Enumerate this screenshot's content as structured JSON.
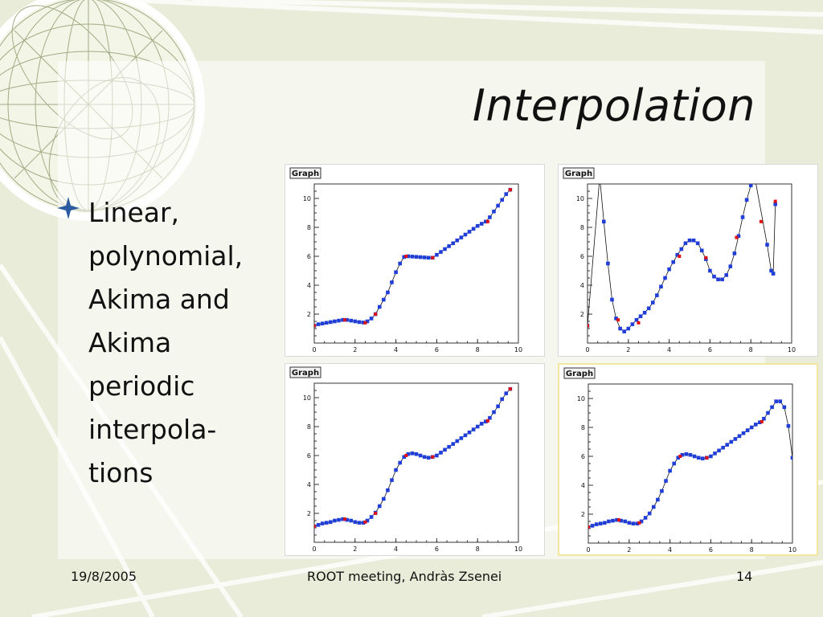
{
  "slide": {
    "title": "Interpolation",
    "bullet": [
      "Linear,",
      "polynomial,",
      "Akima and",
      "Akima",
      "periodic",
      "interpola-",
      "tions"
    ]
  },
  "footer": {
    "date": "19/8/2005",
    "center": "ROOT meeting, Andràs Zsenei",
    "page": "14"
  },
  "colors": {
    "marker": "#1f3ed8",
    "anchor": "#e01010",
    "curve": "#111111",
    "bullet_star": "#2c5aa0"
  },
  "chart_data": [
    {
      "type": "scatter",
      "frame_label": "Graph",
      "interpolation": "linear",
      "xlim": [
        0,
        10
      ],
      "ylim": [
        0,
        11
      ],
      "xticks": [
        "0",
        "2",
        "4",
        "6",
        "8",
        "10"
      ],
      "yticks": [
        "2",
        "4",
        "6",
        "8",
        "10"
      ],
      "anchors": [
        [
          0,
          1.2
        ],
        [
          1.5,
          1.6
        ],
        [
          2.5,
          1.4
        ],
        [
          3,
          2.0
        ],
        [
          4.5,
          6.0
        ],
        [
          5.8,
          5.9
        ],
        [
          8.5,
          8.4
        ],
        [
          9.6,
          10.6
        ]
      ],
      "series": [
        {
          "values": [
            [
              0,
              1.2
            ],
            [
              0.2,
              1.3
            ],
            [
              0.4,
              1.35
            ],
            [
              0.6,
              1.4
            ],
            [
              0.8,
              1.45
            ],
            [
              1.0,
              1.5
            ],
            [
              1.2,
              1.55
            ],
            [
              1.4,
              1.6
            ],
            [
              1.6,
              1.6
            ],
            [
              1.8,
              1.55
            ],
            [
              2.0,
              1.5
            ],
            [
              2.2,
              1.45
            ],
            [
              2.4,
              1.42
            ],
            [
              2.6,
              1.5
            ],
            [
              2.8,
              1.7
            ],
            [
              3.0,
              2.0
            ],
            [
              3.2,
              2.5
            ],
            [
              3.4,
              3.0
            ],
            [
              3.6,
              3.5
            ],
            [
              3.8,
              4.2
            ],
            [
              4.0,
              4.9
            ],
            [
              4.2,
              5.5
            ],
            [
              4.4,
              5.95
            ],
            [
              4.6,
              6.0
            ],
            [
              4.8,
              5.98
            ],
            [
              5.0,
              5.96
            ],
            [
              5.2,
              5.94
            ],
            [
              5.4,
              5.92
            ],
            [
              5.6,
              5.9
            ],
            [
              5.8,
              5.9
            ],
            [
              6.0,
              6.1
            ],
            [
              6.2,
              6.3
            ],
            [
              6.4,
              6.5
            ],
            [
              6.6,
              6.7
            ],
            [
              6.8,
              6.9
            ],
            [
              7.0,
              7.1
            ],
            [
              7.2,
              7.3
            ],
            [
              7.4,
              7.5
            ],
            [
              7.6,
              7.7
            ],
            [
              7.8,
              7.9
            ],
            [
              8.0,
              8.1
            ],
            [
              8.2,
              8.25
            ],
            [
              8.4,
              8.4
            ],
            [
              8.6,
              8.7
            ],
            [
              8.8,
              9.1
            ],
            [
              9.0,
              9.5
            ],
            [
              9.2,
              9.9
            ],
            [
              9.4,
              10.3
            ],
            [
              9.6,
              10.6
            ]
          ]
        }
      ]
    },
    {
      "type": "scatter",
      "frame_label": "Graph",
      "interpolation": "polynomial",
      "xlim": [
        0,
        10
      ],
      "ylim": [
        0,
        11
      ],
      "xticks": [
        "0",
        "2",
        "4",
        "6",
        "8",
        "10"
      ],
      "yticks": [
        "2",
        "4",
        "6",
        "8",
        "10"
      ],
      "anchors": [
        [
          0,
          1.2
        ],
        [
          1.5,
          1.6
        ],
        [
          2.5,
          1.4
        ],
        [
          4.5,
          6.0
        ],
        [
          5.8,
          5.9
        ],
        [
          7.3,
          7.3
        ],
        [
          8.5,
          8.4
        ],
        [
          9.2,
          9.8
        ]
      ],
      "series": [
        {
          "values": [
            [
              0,
              1.2
            ],
            [
              0.6,
              11.5
            ],
            [
              0.8,
              8.4
            ],
            [
              1.0,
              5.5
            ],
            [
              1.2,
              3.0
            ],
            [
              1.4,
              1.7
            ],
            [
              1.6,
              1.0
            ],
            [
              1.8,
              0.8
            ],
            [
              2.0,
              1.0
            ],
            [
              2.2,
              1.3
            ],
            [
              2.4,
              1.6
            ],
            [
              2.6,
              1.85
            ],
            [
              2.8,
              2.1
            ],
            [
              3.0,
              2.4
            ],
            [
              3.2,
              2.8
            ],
            [
              3.4,
              3.3
            ],
            [
              3.6,
              3.9
            ],
            [
              3.8,
              4.5
            ],
            [
              4.0,
              5.1
            ],
            [
              4.2,
              5.6
            ],
            [
              4.4,
              6.1
            ],
            [
              4.6,
              6.5
            ],
            [
              4.8,
              6.9
            ],
            [
              5.0,
              7.1
            ],
            [
              5.2,
              7.1
            ],
            [
              5.4,
              6.9
            ],
            [
              5.6,
              6.4
            ],
            [
              5.8,
              5.8
            ],
            [
              6.0,
              5.0
            ],
            [
              6.2,
              4.6
            ],
            [
              6.4,
              4.4
            ],
            [
              6.6,
              4.4
            ],
            [
              6.8,
              4.7
            ],
            [
              7.0,
              5.3
            ],
            [
              7.2,
              6.2
            ],
            [
              7.4,
              7.4
            ],
            [
              7.6,
              8.7
            ],
            [
              7.8,
              9.9
            ],
            [
              8.0,
              10.9
            ],
            [
              8.2,
              11.4
            ],
            [
              8.8,
              6.8
            ],
            [
              9.0,
              5.0
            ],
            [
              9.1,
              4.8
            ],
            [
              9.2,
              9.6
            ]
          ]
        }
      ]
    },
    {
      "type": "scatter",
      "frame_label": "Graph",
      "interpolation": "akima",
      "xlim": [
        0,
        10
      ],
      "ylim": [
        0,
        11
      ],
      "xticks": [
        "0",
        "2",
        "4",
        "6",
        "8",
        "10"
      ],
      "yticks": [
        "2",
        "4",
        "6",
        "8",
        "10"
      ],
      "anchors": [
        [
          0,
          1.1
        ],
        [
          1.5,
          1.6
        ],
        [
          2.5,
          1.4
        ],
        [
          3,
          2.0
        ],
        [
          4.5,
          6.0
        ],
        [
          5.8,
          5.9
        ],
        [
          8.5,
          8.4
        ],
        [
          9.6,
          10.6
        ]
      ],
      "series": [
        {
          "values": [
            [
              0,
              1.1
            ],
            [
              0.2,
              1.2
            ],
            [
              0.4,
              1.3
            ],
            [
              0.6,
              1.35
            ],
            [
              0.8,
              1.4
            ],
            [
              1.0,
              1.5
            ],
            [
              1.2,
              1.55
            ],
            [
              1.4,
              1.6
            ],
            [
              1.6,
              1.55
            ],
            [
              1.8,
              1.5
            ],
            [
              2.0,
              1.4
            ],
            [
              2.2,
              1.35
            ],
            [
              2.4,
              1.35
            ],
            [
              2.6,
              1.5
            ],
            [
              2.8,
              1.75
            ],
            [
              3.0,
              2.05
            ],
            [
              3.2,
              2.5
            ],
            [
              3.4,
              3.0
            ],
            [
              3.6,
              3.6
            ],
            [
              3.8,
              4.3
            ],
            [
              4.0,
              5.0
            ],
            [
              4.2,
              5.5
            ],
            [
              4.4,
              5.9
            ],
            [
              4.6,
              6.1
            ],
            [
              4.8,
              6.15
            ],
            [
              5.0,
              6.1
            ],
            [
              5.2,
              6.0
            ],
            [
              5.4,
              5.9
            ],
            [
              5.6,
              5.85
            ],
            [
              5.8,
              5.9
            ],
            [
              6.0,
              6.0
            ],
            [
              6.2,
              6.2
            ],
            [
              6.4,
              6.4
            ],
            [
              6.6,
              6.6
            ],
            [
              6.8,
              6.8
            ],
            [
              7.0,
              7.0
            ],
            [
              7.2,
              7.2
            ],
            [
              7.4,
              7.4
            ],
            [
              7.6,
              7.6
            ],
            [
              7.8,
              7.8
            ],
            [
              8.0,
              8.0
            ],
            [
              8.2,
              8.2
            ],
            [
              8.4,
              8.35
            ],
            [
              8.6,
              8.6
            ],
            [
              8.8,
              9.0
            ],
            [
              9.0,
              9.4
            ],
            [
              9.2,
              9.9
            ],
            [
              9.4,
              10.3
            ],
            [
              9.6,
              10.6
            ]
          ]
        }
      ]
    },
    {
      "type": "scatter",
      "frame_label": "Graph",
      "interpolation": "akima periodic",
      "xlim": [
        0,
        10
      ],
      "ylim": [
        0,
        11
      ],
      "xticks": [
        "0",
        "2",
        "4",
        "6",
        "8",
        "10"
      ],
      "yticks": [
        "2",
        "4",
        "6",
        "8",
        "10"
      ],
      "anchors": [
        [
          0,
          1.1
        ],
        [
          1.5,
          1.6
        ],
        [
          2.5,
          1.4
        ],
        [
          4.5,
          6.0
        ],
        [
          5.8,
          5.9
        ],
        [
          8.5,
          8.4
        ]
      ],
      "series": [
        {
          "values": [
            [
              0,
              1.1
            ],
            [
              0.2,
              1.2
            ],
            [
              0.4,
              1.3
            ],
            [
              0.6,
              1.35
            ],
            [
              0.8,
              1.4
            ],
            [
              1.0,
              1.5
            ],
            [
              1.2,
              1.55
            ],
            [
              1.4,
              1.6
            ],
            [
              1.6,
              1.55
            ],
            [
              1.8,
              1.5
            ],
            [
              2.0,
              1.4
            ],
            [
              2.2,
              1.35
            ],
            [
              2.4,
              1.35
            ],
            [
              2.6,
              1.5
            ],
            [
              2.8,
              1.75
            ],
            [
              3.0,
              2.05
            ],
            [
              3.2,
              2.5
            ],
            [
              3.4,
              3.0
            ],
            [
              3.6,
              3.6
            ],
            [
              3.8,
              4.3
            ],
            [
              4.0,
              5.0
            ],
            [
              4.2,
              5.5
            ],
            [
              4.4,
              5.9
            ],
            [
              4.6,
              6.1
            ],
            [
              4.8,
              6.15
            ],
            [
              5.0,
              6.1
            ],
            [
              5.2,
              6.0
            ],
            [
              5.4,
              5.9
            ],
            [
              5.6,
              5.85
            ],
            [
              5.8,
              5.9
            ],
            [
              6.0,
              6.0
            ],
            [
              6.2,
              6.2
            ],
            [
              6.4,
              6.4
            ],
            [
              6.6,
              6.6
            ],
            [
              6.8,
              6.8
            ],
            [
              7.0,
              7.0
            ],
            [
              7.2,
              7.2
            ],
            [
              7.4,
              7.4
            ],
            [
              7.6,
              7.6
            ],
            [
              7.8,
              7.8
            ],
            [
              8.0,
              8.0
            ],
            [
              8.2,
              8.2
            ],
            [
              8.4,
              8.35
            ],
            [
              8.6,
              8.6
            ],
            [
              8.8,
              9.0
            ],
            [
              9.0,
              9.4
            ],
            [
              9.2,
              9.8
            ],
            [
              9.4,
              9.8
            ],
            [
              9.6,
              9.4
            ],
            [
              9.8,
              8.1
            ],
            [
              10.0,
              5.9
            ]
          ]
        }
      ]
    }
  ]
}
